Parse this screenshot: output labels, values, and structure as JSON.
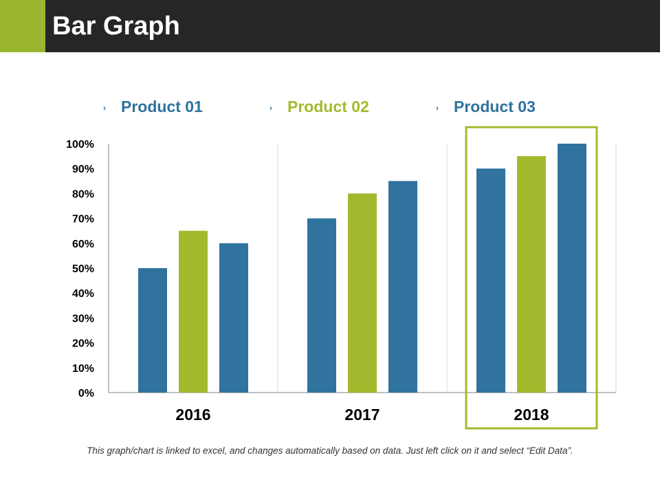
{
  "header": {
    "title": "Bar Graph"
  },
  "colors": {
    "blue": "#2f739e",
    "green": "#a4b92d",
    "dark": "#262626"
  },
  "legend": [
    {
      "label": "Product 01",
      "color": "#2f739e"
    },
    {
      "label": "Product 02",
      "color": "#a4b92d"
    },
    {
      "label": "Product 03",
      "color": "#2f739e"
    }
  ],
  "chart_data": {
    "type": "bar",
    "title": "",
    "xlabel": "",
    "ylabel": "",
    "categories": [
      "2016",
      "2017",
      "2018"
    ],
    "series": [
      {
        "name": "Product 01",
        "color": "#2f739e",
        "values": [
          50,
          70,
          90
        ]
      },
      {
        "name": "Product 02",
        "color": "#a4b92d",
        "values": [
          65,
          80,
          95
        ]
      },
      {
        "name": "Product 03",
        "color": "#2f739e",
        "values": [
          60,
          85,
          100
        ]
      }
    ],
    "ylim": [
      0,
      100
    ],
    "yticks": [
      "0%",
      "10%",
      "20%",
      "30%",
      "40%",
      "50%",
      "60%",
      "70%",
      "80%",
      "90%",
      "100%"
    ],
    "highlighted_category": "2018",
    "grid": "vertical separators between categories"
  },
  "footnote": "This graph/chart is linked to excel, and changes automatically based on data. Just left click on it and select “Edit Data”."
}
